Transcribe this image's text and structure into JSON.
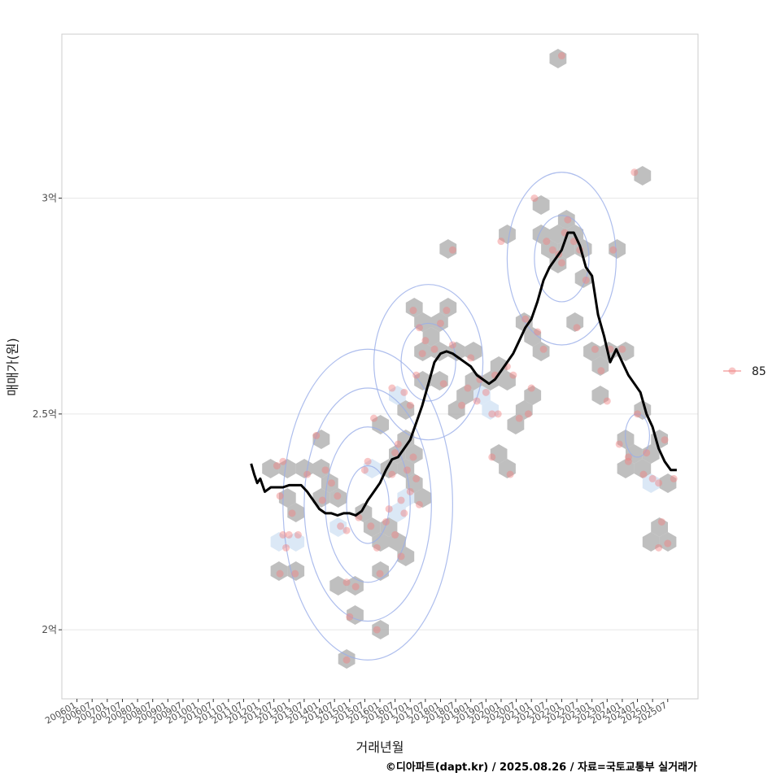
{
  "chart_data": {
    "type": "scatter",
    "title": "",
    "xlabel": "거래년월",
    "ylabel": "매매가(원)",
    "caption": "©디아파트(dapt.kr) / 2025.08.26 / 자료=국토교통부 실거래가",
    "x_range": [
      2005.5,
      2026.5
    ],
    "ylim": [
      184000000,
      338000000
    ],
    "y_ticks": [
      {
        "value": 200000000,
        "label": "2억"
      },
      {
        "value": 250000000,
        "label": "2.5억"
      },
      {
        "value": 300000000,
        "label": "3억"
      }
    ],
    "x_ticks": [
      {
        "value": 2006.0,
        "label": "200601"
      },
      {
        "value": 2006.5,
        "label": "200607"
      },
      {
        "value": 2007.0,
        "label": "200701"
      },
      {
        "value": 2007.5,
        "label": "200707"
      },
      {
        "value": 2008.0,
        "label": "200801"
      },
      {
        "value": 2008.5,
        "label": "200807"
      },
      {
        "value": 2009.0,
        "label": "200901"
      },
      {
        "value": 2009.5,
        "label": "200907"
      },
      {
        "value": 2010.0,
        "label": "201001"
      },
      {
        "value": 2010.5,
        "label": "201007"
      },
      {
        "value": 2011.0,
        "label": "201101"
      },
      {
        "value": 2011.5,
        "label": "201107"
      },
      {
        "value": 2012.0,
        "label": "201201"
      },
      {
        "value": 2012.5,
        "label": "201207"
      },
      {
        "value": 2013.0,
        "label": "201301"
      },
      {
        "value": 2013.5,
        "label": "201307"
      },
      {
        "value": 2014.0,
        "label": "201401"
      },
      {
        "value": 2014.5,
        "label": "201407"
      },
      {
        "value": 2015.0,
        "label": "201501"
      },
      {
        "value": 2015.5,
        "label": "201507"
      },
      {
        "value": 2016.0,
        "label": "201601"
      },
      {
        "value": 2016.5,
        "label": "201607"
      },
      {
        "value": 2017.0,
        "label": "201701"
      },
      {
        "value": 2017.5,
        "label": "201707"
      },
      {
        "value": 2018.0,
        "label": "201801"
      },
      {
        "value": 2018.5,
        "label": "201807"
      },
      {
        "value": 2019.0,
        "label": "201901"
      },
      {
        "value": 2019.5,
        "label": "201907"
      },
      {
        "value": 2020.0,
        "label": "202001"
      },
      {
        "value": 2020.5,
        "label": "202007"
      },
      {
        "value": 2021.0,
        "label": "202101"
      },
      {
        "value": 2021.5,
        "label": "202107"
      },
      {
        "value": 2022.0,
        "label": "202201"
      },
      {
        "value": 2022.5,
        "label": "202207"
      },
      {
        "value": 2023.0,
        "label": "202301"
      },
      {
        "value": 2023.5,
        "label": "202307"
      },
      {
        "value": 2024.0,
        "label": "202401"
      },
      {
        "value": 2024.5,
        "label": "202407"
      },
      {
        "value": 2025.0,
        "label": "202501"
      },
      {
        "value": 2025.5,
        "label": "202507"
      }
    ],
    "legend": {
      "position": "right",
      "entries": [
        {
          "name": "85",
          "color": "#f08080"
        }
      ]
    },
    "colors": {
      "points": "#f08080",
      "hex": "#a9a9a9",
      "hex_light": "#cfe0f3",
      "line": "#000000",
      "contour": "#9aaee8",
      "grid": "#e6e6e6",
      "border": "#cccccc"
    },
    "series": [
      {
        "name": "85",
        "points": [
          [
            2012.6,
            238000000
          ],
          [
            2012.7,
            231000000
          ],
          [
            2012.8,
            222000000
          ],
          [
            2012.9,
            219000000
          ],
          [
            2012.7,
            213000000
          ],
          [
            2013.0,
            222000000
          ],
          [
            2013.1,
            227000000
          ],
          [
            2013.3,
            222000000
          ],
          [
            2013.2,
            213000000
          ],
          [
            2012.8,
            239000000
          ],
          [
            2013.9,
            245000000
          ],
          [
            2014.2,
            237000000
          ],
          [
            2014.4,
            234000000
          ],
          [
            2014.1,
            230000000
          ],
          [
            2014.6,
            231000000
          ],
          [
            2014.9,
            223000000
          ],
          [
            2014.9,
            211000000
          ],
          [
            2015.0,
            203000000
          ],
          [
            2014.9,
            193000000
          ],
          [
            2015.2,
            210000000
          ],
          [
            2015.3,
            226000000
          ],
          [
            2015.5,
            237000000
          ],
          [
            2015.6,
            239000000
          ],
          [
            2015.8,
            249000000
          ],
          [
            2015.7,
            224000000
          ],
          [
            2015.9,
            219000000
          ],
          [
            2016.0,
            213000000
          ],
          [
            2016.2,
            225000000
          ],
          [
            2016.3,
            228000000
          ],
          [
            2016.4,
            236000000
          ],
          [
            2016.5,
            241000000
          ],
          [
            2016.6,
            243000000
          ],
          [
            2016.7,
            230000000
          ],
          [
            2016.8,
            227000000
          ],
          [
            2016.9,
            237000000
          ],
          [
            2016.5,
            222000000
          ],
          [
            2016.7,
            217000000
          ],
          [
            2015.9,
            200000000
          ],
          [
            2017.0,
            232000000
          ],
          [
            2017.1,
            240000000
          ],
          [
            2017.2,
            235000000
          ],
          [
            2017.3,
            229000000
          ],
          [
            2016.8,
            255000000
          ],
          [
            2016.4,
            256000000
          ],
          [
            2017.0,
            252000000
          ],
          [
            2017.2,
            259000000
          ],
          [
            2017.4,
            264000000
          ],
          [
            2017.3,
            270000000
          ],
          [
            2017.1,
            274000000
          ],
          [
            2017.5,
            267000000
          ],
          [
            2017.8,
            265000000
          ],
          [
            2018.0,
            271000000
          ],
          [
            2018.2,
            274000000
          ],
          [
            2018.4,
            266000000
          ],
          [
            2018.1,
            257000000
          ],
          [
            2018.7,
            252000000
          ],
          [
            2018.9,
            256000000
          ],
          [
            2019.0,
            263000000
          ],
          [
            2019.2,
            253000000
          ],
          [
            2019.3,
            258000000
          ],
          [
            2019.5,
            255000000
          ],
          [
            2019.7,
            250000000
          ],
          [
            2019.8,
            259000000
          ],
          [
            2019.9,
            250000000
          ],
          [
            2020.2,
            261000000
          ],
          [
            2020.4,
            259000000
          ],
          [
            2020.6,
            249000000
          ],
          [
            2020.9,
            250000000
          ],
          [
            2021.0,
            256000000
          ],
          [
            2020.8,
            272000000
          ],
          [
            2021.2,
            269000000
          ],
          [
            2021.4,
            265000000
          ],
          [
            2021.1,
            300000000
          ],
          [
            2021.5,
            290000000
          ],
          [
            2021.7,
            288000000
          ],
          [
            2021.9,
            287000000
          ],
          [
            2022.0,
            285000000
          ],
          [
            2022.1,
            292000000
          ],
          [
            2022.2,
            295000000
          ],
          [
            2022.4,
            290000000
          ],
          [
            2022.6,
            288000000
          ],
          [
            2022.8,
            281000000
          ],
          [
            2022.5,
            270000000
          ],
          [
            2022.0,
            333000000
          ],
          [
            2023.1,
            265000000
          ],
          [
            2023.3,
            260000000
          ],
          [
            2023.5,
            253000000
          ],
          [
            2023.7,
            288000000
          ],
          [
            2023.6,
            265000000
          ],
          [
            2024.0,
            265000000
          ],
          [
            2023.9,
            243000000
          ],
          [
            2024.2,
            240000000
          ],
          [
            2024.2,
            239000000
          ],
          [
            2024.4,
            306000000
          ],
          [
            2024.5,
            250000000
          ],
          [
            2024.7,
            236000000
          ],
          [
            2024.8,
            241000000
          ],
          [
            2025.0,
            235000000
          ],
          [
            2025.2,
            234000000
          ],
          [
            2025.3,
            225000000
          ],
          [
            2025.2,
            219000000
          ],
          [
            2025.5,
            220000000
          ],
          [
            2025.7,
            235000000
          ],
          [
            2025.4,
            244000000
          ],
          [
            2018.4,
            288000000
          ],
          [
            2020.0,
            290000000
          ],
          [
            2019.7,
            240000000
          ],
          [
            2020.3,
            236000000
          ],
          [
            2013.6,
            236000000
          ],
          [
            2014.7,
            224000000
          ]
        ]
      }
    ],
    "moving_average": [
      [
        2011.75,
        238500000
      ],
      [
        2011.85,
        236000000
      ],
      [
        2011.95,
        234000000
      ],
      [
        2012.05,
        235000000
      ],
      [
        2012.2,
        232000000
      ],
      [
        2012.4,
        233000000
      ],
      [
        2012.6,
        233000000
      ],
      [
        2012.8,
        233000000
      ],
      [
        2013.0,
        233500000
      ],
      [
        2013.2,
        233500000
      ],
      [
        2013.4,
        233500000
      ],
      [
        2013.6,
        232000000
      ],
      [
        2013.8,
        230000000
      ],
      [
        2014.0,
        228000000
      ],
      [
        2014.2,
        227000000
      ],
      [
        2014.4,
        227000000
      ],
      [
        2014.6,
        226500000
      ],
      [
        2014.8,
        227000000
      ],
      [
        2015.0,
        227000000
      ],
      [
        2015.2,
        226500000
      ],
      [
        2015.4,
        227500000
      ],
      [
        2015.6,
        230000000
      ],
      [
        2015.8,
        232000000
      ],
      [
        2016.0,
        234000000
      ],
      [
        2016.2,
        237000000
      ],
      [
        2016.4,
        239500000
      ],
      [
        2016.6,
        240000000
      ],
      [
        2016.8,
        242000000
      ],
      [
        2017.0,
        244000000
      ],
      [
        2017.2,
        248000000
      ],
      [
        2017.4,
        252000000
      ],
      [
        2017.6,
        257000000
      ],
      [
        2017.8,
        262000000
      ],
      [
        2018.0,
        264000000
      ],
      [
        2018.2,
        264500000
      ],
      [
        2018.4,
        264000000
      ],
      [
        2018.6,
        263000000
      ],
      [
        2018.8,
        262000000
      ],
      [
        2019.0,
        261000000
      ],
      [
        2019.2,
        259000000
      ],
      [
        2019.4,
        258000000
      ],
      [
        2019.6,
        257000000
      ],
      [
        2019.8,
        258000000
      ],
      [
        2020.0,
        260000000
      ],
      [
        2020.2,
        262000000
      ],
      [
        2020.4,
        264000000
      ],
      [
        2020.6,
        267000000
      ],
      [
        2020.8,
        270000000
      ],
      [
        2021.0,
        272000000
      ],
      [
        2021.2,
        276000000
      ],
      [
        2021.4,
        281000000
      ],
      [
        2021.6,
        284000000
      ],
      [
        2021.8,
        286000000
      ],
      [
        2022.0,
        288000000
      ],
      [
        2022.2,
        292000000
      ],
      [
        2022.4,
        292000000
      ],
      [
        2022.6,
        289000000
      ],
      [
        2022.8,
        284000000
      ],
      [
        2023.0,
        282000000
      ],
      [
        2023.2,
        273000000
      ],
      [
        2023.4,
        268000000
      ],
      [
        2023.6,
        262000000
      ],
      [
        2023.8,
        265000000
      ],
      [
        2024.0,
        262000000
      ],
      [
        2024.2,
        259000000
      ],
      [
        2024.4,
        257000000
      ],
      [
        2024.6,
        255000000
      ],
      [
        2024.8,
        250000000
      ],
      [
        2025.0,
        247000000
      ],
      [
        2025.2,
        242000000
      ],
      [
        2025.4,
        239000000
      ],
      [
        2025.6,
        237000000
      ],
      [
        2025.8,
        237000000
      ]
    ]
  }
}
